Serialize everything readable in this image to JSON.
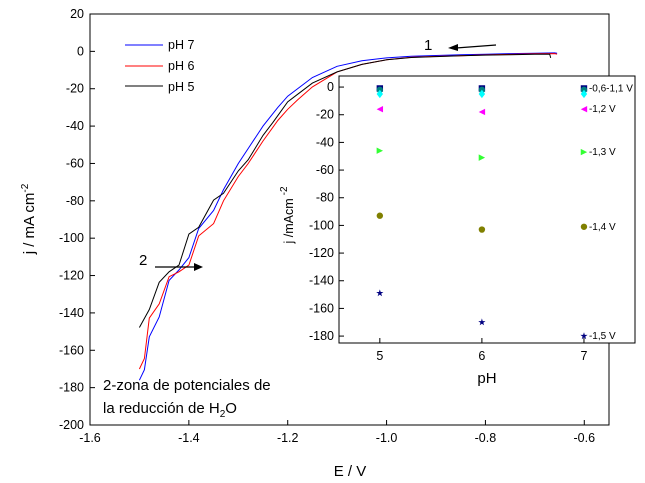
{
  "chart_data": [
    {
      "type": "line",
      "xlabel": "E / V",
      "ylabel_prefix": "j / mA cm",
      "ylabel_sup": "-2",
      "xlim": [
        -1.6,
        -0.55
      ],
      "ylim": [
        -200,
        20
      ],
      "xticks": [
        -1.6,
        -1.4,
        -1.2,
        -1.0,
        -0.8,
        -0.6
      ],
      "xtick_labels": [
        "-1.6",
        "-1.4",
        "-1.2",
        "-1.0",
        "-0.8",
        "-0.6"
      ],
      "yticks": [
        20,
        0,
        -20,
        -40,
        -60,
        -80,
        -100,
        -120,
        -140,
        -160,
        -180,
        -200
      ],
      "ytick_labels": [
        "20",
        "0",
        "-20",
        "-40",
        "-60",
        "-80",
        "-100",
        "-120",
        "-140",
        "-160",
        "-180",
        "-200"
      ],
      "legend": "top-left",
      "series": [
        {
          "name": "pH 7",
          "color": "#0000ff",
          "x": [
            -0.655,
            -0.66,
            -0.7,
            -0.75,
            -0.8,
            -0.85,
            -0.9,
            -0.95,
            -1.0,
            -1.05,
            -1.1,
            -1.15,
            -1.2,
            -1.22,
            -1.25,
            -1.28,
            -1.3,
            -1.33,
            -1.35,
            -1.38,
            -1.4,
            -1.42,
            -1.44,
            -1.46,
            -1.48,
            -1.49,
            -1.5
          ],
          "y": [
            -1.0,
            -0.8,
            -1.0,
            -1.2,
            -1.5,
            -1.8,
            -2.2,
            -2.6,
            -3.5,
            -5.0,
            -8.0,
            -14.0,
            -24.0,
            -30.0,
            -40.0,
            -52.0,
            -60.0,
            -74.0,
            -83.0,
            -97.0,
            -106.0,
            -117.0,
            -127.0,
            -140.0,
            -155.0,
            -166.0,
            -176.0
          ]
        },
        {
          "name": "pH 6",
          "color": "#ff0000",
          "x": [
            -0.655,
            -0.66,
            -0.7,
            -0.75,
            -0.8,
            -0.85,
            -0.9,
            -0.95,
            -1.0,
            -1.05,
            -1.1,
            -1.15,
            -1.18,
            -1.2,
            -1.22,
            -1.25,
            -1.28,
            -1.3,
            -1.33,
            -1.35,
            -1.38,
            -1.4,
            -1.42,
            -1.44,
            -1.46,
            -1.48,
            -1.49,
            -1.5
          ],
          "y": [
            -1.5,
            -1.2,
            -1.3,
            -1.6,
            -1.9,
            -2.3,
            -2.7,
            -3.2,
            -4.5,
            -7.0,
            -11.0,
            -19.0,
            -26.0,
            -31.0,
            -37.0,
            -48.0,
            -60.0,
            -67.0,
            -80.0,
            -90.0,
            -101.0,
            -110.0,
            -118.0,
            -125.0,
            -133.0,
            -145.0,
            -160.0,
            -170.0
          ]
        },
        {
          "name": "pH 5",
          "color": "#000000",
          "x": [
            -0.668,
            -0.67,
            -0.7,
            -0.75,
            -0.8,
            -0.85,
            -0.9,
            -0.95,
            -1.0,
            -1.05,
            -1.1,
            -1.15,
            -1.18,
            -1.2,
            -1.23,
            -1.25,
            -1.28,
            -1.3,
            -1.33,
            -1.35,
            -1.38,
            -1.4,
            -1.42,
            -1.44,
            -1.46,
            -1.48,
            -1.5
          ],
          "y": [
            -3.5,
            -1.5,
            -1.5,
            -1.8,
            -2.0,
            -2.4,
            -2.8,
            -3.3,
            -4.5,
            -7.0,
            -11.0,
            -17.0,
            -23.0,
            -27.0,
            -38.0,
            -45.0,
            -58.0,
            -64.0,
            -76.0,
            -84.0,
            -92.0,
            -100.0,
            -110.0,
            -118.0,
            -128.0,
            -136.0,
            -150.0
          ]
        }
      ],
      "annotations": [
        {
          "text": "1",
          "x": -0.8,
          "y": 3
        },
        {
          "text": "2",
          "x": -1.435,
          "y": -115
        }
      ],
      "note_lines": [
        "2-zona de potenciales de",
        "la reducción de H",
        "2",
        "O"
      ]
    },
    {
      "type": "scatter",
      "xlabel": "pH",
      "ylabel_prefix": "j /mAcm",
      "ylabel_sup": "-2",
      "xlim": [
        4.6,
        7.5
      ],
      "ylim": [
        -185,
        8
      ],
      "xticks": [
        5,
        6,
        7
      ],
      "xtick_labels": [
        "5",
        "6",
        "7"
      ],
      "yticks": [
        0,
        -20,
        -40,
        -60,
        -80,
        -100,
        -120,
        -140,
        -160,
        -180
      ],
      "ytick_labels": [
        "0",
        "-20",
        "-40",
        "-60",
        "-80",
        "-100",
        "-120",
        "-140",
        "-160",
        "-180"
      ],
      "series": [
        {
          "label": "-0,6-1,1 V",
          "color": "#000080",
          "marker": "square",
          "x": [
            5,
            6,
            7
          ],
          "y": [
            -1,
            -1,
            -1
          ]
        },
        {
          "label": "",
          "color": "#008080",
          "marker": "circle",
          "x": [
            5,
            6,
            7
          ],
          "y": [
            -2,
            -2,
            -2
          ]
        },
        {
          "label": "",
          "color": "#00ffff",
          "marker": "diamond",
          "x": [
            5,
            6,
            7
          ],
          "y": [
            -5,
            -5,
            -5
          ]
        },
        {
          "label": "-1,2 V",
          "color": "#ff00ff",
          "marker": "tri-left",
          "x": [
            5,
            6,
            7
          ],
          "y": [
            -16,
            -18,
            -16
          ]
        },
        {
          "label": "-1,3 V",
          "color": "#33ff33",
          "marker": "tri-right",
          "x": [
            5,
            6,
            7
          ],
          "y": [
            -46,
            -51,
            -47
          ]
        },
        {
          "label": "-1,4 V",
          "color": "#808000",
          "marker": "hexagon",
          "x": [
            5,
            6,
            7
          ],
          "y": [
            -93,
            -103,
            -101
          ]
        },
        {
          "label": "-1,5 V",
          "color": "#000080",
          "marker": "star",
          "x": [
            5,
            6,
            7
          ],
          "y": [
            -149,
            -170,
            -180
          ]
        }
      ]
    }
  ]
}
